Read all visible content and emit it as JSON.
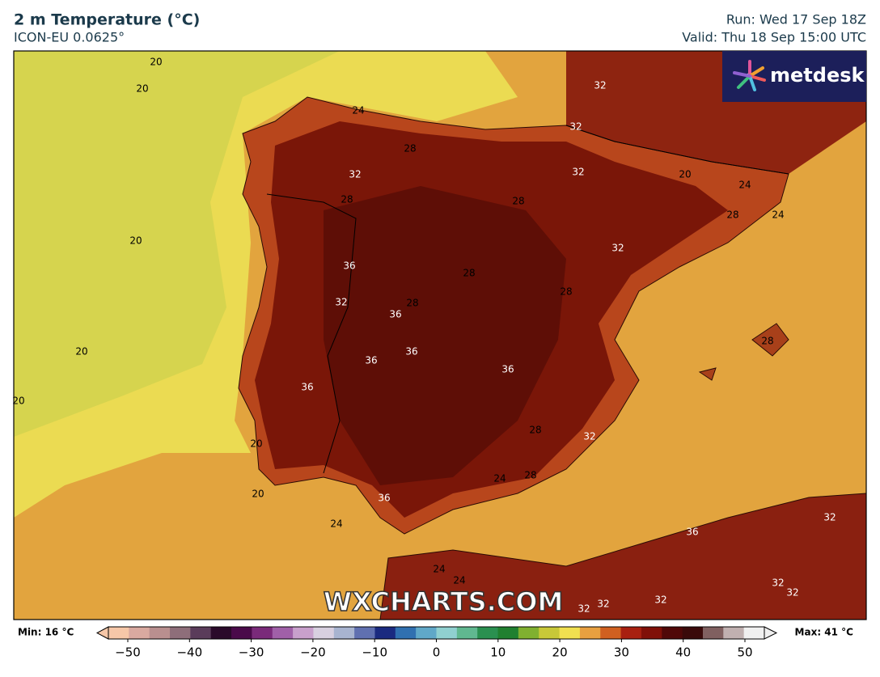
{
  "header": {
    "title": "2 m Temperature (°C)",
    "subtitle": "ICON-EU 0.0625°",
    "run": "Run: Wed 17 Sep 18Z",
    "valid": "Valid: Thu 18 Sep 15:00 UTC"
  },
  "logo": "metdesk",
  "watermark": "WXCHARTS.COM",
  "contour_labels": [
    20,
    20,
    24,
    32,
    32,
    28,
    32,
    32,
    20,
    24,
    28,
    28,
    28,
    24,
    20,
    32,
    36,
    28,
    28,
    32,
    28,
    36,
    20,
    36,
    36,
    28,
    36,
    36,
    20,
    28,
    32,
    20,
    24,
    28,
    20,
    36,
    24,
    32,
    36,
    24,
    24,
    32,
    32,
    32,
    32,
    32
  ],
  "colorbar": {
    "min_label": "Min: 16 °C",
    "max_label": "Max: 41 °C",
    "range": [
      -50,
      50
    ],
    "ticks": [
      {
        "value": -50,
        "label": "−50"
      },
      {
        "value": -40,
        "label": "−40"
      },
      {
        "value": -30,
        "label": "−30"
      },
      {
        "value": -20,
        "label": "−20"
      },
      {
        "value": -10,
        "label": "−10"
      },
      0,
      10,
      20,
      30,
      40,
      50
    ],
    "colors": [
      "#f6c7a8",
      "#d9a9a0",
      "#b98f8f",
      "#8e6e7a",
      "#5a3c5a",
      "#2a0a2a",
      "#4a0a4a",
      "#7a2a7a",
      "#a060a8",
      "#c8a0cc",
      "#d8d0e0",
      "#a8b4d0",
      "#6070b0",
      "#1a2a80",
      "#3070b0",
      "#60a8c8",
      "#90d0d0",
      "#60b890",
      "#2a9050",
      "#208030",
      "#80b030",
      "#c8c838",
      "#f0e050",
      "#e8a040",
      "#d06020",
      "#a82010",
      "#801008",
      "#500808",
      "#3a0a0a",
      "#806060",
      "#c0b0b0",
      "#f0f0f0"
    ]
  }
}
